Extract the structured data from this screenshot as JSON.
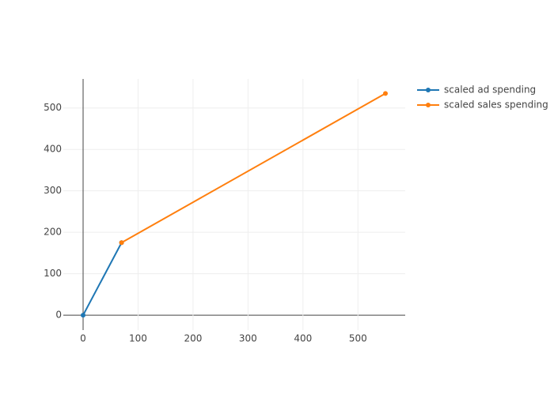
{
  "chart_data": {
    "type": "line",
    "series": [
      {
        "name": "scaled ad spending",
        "color": "#1f77b4",
        "x": [
          0,
          70
        ],
        "values": [
          0,
          175
        ]
      },
      {
        "name": "scaled sales spending",
        "color": "#ff7f0e",
        "x": [
          70,
          550
        ],
        "values": [
          175,
          535
        ]
      }
    ],
    "xlim": [
      -36,
      586
    ],
    "ylim": [
      -36,
      570
    ],
    "xticks": [
      0,
      100,
      200,
      300,
      400,
      500
    ],
    "yticks": [
      0,
      100,
      200,
      300,
      400,
      500
    ],
    "grid": true,
    "legend": "top-right"
  }
}
